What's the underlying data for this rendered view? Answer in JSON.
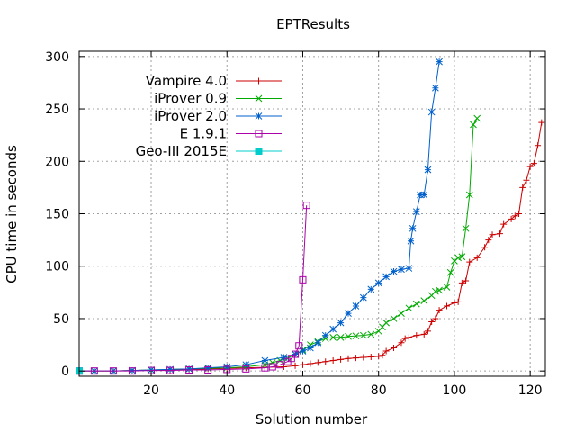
{
  "chart_data": {
    "type": "line",
    "title": "EPTResults",
    "xlabel": "Solution number",
    "ylabel": "CPU time in seconds",
    "xlim": [
      1,
      124
    ],
    "ylim": [
      -5,
      305
    ],
    "xticks": [
      20,
      40,
      60,
      80,
      100,
      120
    ],
    "yticks": [
      0,
      50,
      100,
      150,
      200,
      250,
      300
    ],
    "grid": true,
    "legend_position": "top-left",
    "series": [
      {
        "name": "Vampire 4.0",
        "color": "#cc0000",
        "marker": "plus",
        "points": [
          [
            1,
            0
          ],
          [
            5,
            0
          ],
          [
            10,
            0
          ],
          [
            15,
            0.5
          ],
          [
            20,
            0.8
          ],
          [
            25,
            1
          ],
          [
            30,
            1.5
          ],
          [
            35,
            2
          ],
          [
            40,
            2.5
          ],
          [
            45,
            3
          ],
          [
            50,
            3.5
          ],
          [
            55,
            4
          ],
          [
            58,
            5
          ],
          [
            60,
            6
          ],
          [
            62,
            7
          ],
          [
            64,
            8
          ],
          [
            66,
            9
          ],
          [
            68,
            10
          ],
          [
            70,
            11
          ],
          [
            72,
            12
          ],
          [
            74,
            12.5
          ],
          [
            76,
            13
          ],
          [
            78,
            13.5
          ],
          [
            80,
            14
          ],
          [
            81,
            15
          ],
          [
            82,
            19
          ],
          [
            84,
            22
          ],
          [
            86,
            27
          ],
          [
            87,
            31
          ],
          [
            88,
            32
          ],
          [
            90,
            34
          ],
          [
            92,
            35
          ],
          [
            93,
            38
          ],
          [
            94,
            47
          ],
          [
            95,
            50
          ],
          [
            96,
            58
          ],
          [
            98,
            62
          ],
          [
            100,
            65
          ],
          [
            101,
            66
          ],
          [
            102,
            84
          ],
          [
            103,
            86
          ],
          [
            104,
            104
          ],
          [
            106,
            108
          ],
          [
            108,
            118
          ],
          [
            109,
            125
          ],
          [
            110,
            130
          ],
          [
            112,
            131
          ],
          [
            113,
            140
          ],
          [
            115,
            145
          ],
          [
            116,
            148
          ],
          [
            117,
            150
          ],
          [
            118,
            175
          ],
          [
            119,
            182
          ],
          [
            120,
            195
          ],
          [
            121,
            198
          ],
          [
            122,
            215
          ],
          [
            123,
            237
          ]
        ]
      },
      {
        "name": "iProver 0.9",
        "color": "#00aa00",
        "marker": "cross",
        "points": [
          [
            1,
            0
          ],
          [
            5,
            0
          ],
          [
            10,
            0
          ],
          [
            15,
            0.5
          ],
          [
            20,
            1
          ],
          [
            25,
            1.5
          ],
          [
            30,
            2
          ],
          [
            35,
            2.5
          ],
          [
            40,
            3
          ],
          [
            45,
            4
          ],
          [
            50,
            6
          ],
          [
            52,
            8
          ],
          [
            54,
            10
          ],
          [
            56,
            12
          ],
          [
            58,
            16
          ],
          [
            60,
            20
          ],
          [
            62,
            25
          ],
          [
            64,
            28
          ],
          [
            66,
            31
          ],
          [
            68,
            32
          ],
          [
            70,
            32
          ],
          [
            72,
            33
          ],
          [
            74,
            33.5
          ],
          [
            76,
            34
          ],
          [
            78,
            35
          ],
          [
            80,
            38
          ],
          [
            81,
            42
          ],
          [
            82,
            46
          ],
          [
            84,
            50
          ],
          [
            86,
            55
          ],
          [
            88,
            60
          ],
          [
            90,
            64
          ],
          [
            92,
            67
          ],
          [
            94,
            72
          ],
          [
            95,
            76
          ],
          [
            96,
            77
          ],
          [
            98,
            80
          ],
          [
            99,
            94
          ],
          [
            100,
            105
          ],
          [
            101,
            108
          ],
          [
            102,
            109
          ],
          [
            103,
            136
          ],
          [
            104,
            168
          ],
          [
            105,
            235
          ],
          [
            106,
            241
          ]
        ]
      },
      {
        "name": "iProver 2.0",
        "color": "#0060cc",
        "marker": "star",
        "points": [
          [
            1,
            0
          ],
          [
            5,
            0
          ],
          [
            10,
            0
          ],
          [
            15,
            0.5
          ],
          [
            20,
            1
          ],
          [
            25,
            1.5
          ],
          [
            30,
            2
          ],
          [
            35,
            3
          ],
          [
            40,
            4
          ],
          [
            45,
            6
          ],
          [
            50,
            10
          ],
          [
            55,
            13
          ],
          [
            58,
            16
          ],
          [
            60,
            19
          ],
          [
            62,
            22
          ],
          [
            64,
            27
          ],
          [
            66,
            34
          ],
          [
            68,
            40
          ],
          [
            70,
            46
          ],
          [
            72,
            55
          ],
          [
            74,
            62
          ],
          [
            76,
            70
          ],
          [
            78,
            78
          ],
          [
            80,
            84
          ],
          [
            82,
            90
          ],
          [
            84,
            95
          ],
          [
            86,
            97
          ],
          [
            88,
            98
          ],
          [
            88.5,
            124
          ],
          [
            89,
            136
          ],
          [
            90,
            152
          ],
          [
            91,
            168
          ],
          [
            92,
            168
          ],
          [
            93,
            192
          ],
          [
            94,
            247
          ],
          [
            95,
            270
          ],
          [
            96,
            295
          ]
        ]
      },
      {
        "name": "E 1.9.1",
        "color": "#aa00aa",
        "marker": "square",
        "points": [
          [
            1,
            0
          ],
          [
            5,
            0
          ],
          [
            10,
            0
          ],
          [
            15,
            0
          ],
          [
            20,
            0.5
          ],
          [
            25,
            0.5
          ],
          [
            30,
            1
          ],
          [
            35,
            1
          ],
          [
            40,
            1.5
          ],
          [
            45,
            2
          ],
          [
            50,
            3
          ],
          [
            52,
            4
          ],
          [
            54,
            6
          ],
          [
            56,
            9
          ],
          [
            57,
            12
          ],
          [
            58,
            16
          ],
          [
            59,
            24
          ],
          [
            60,
            87
          ],
          [
            61,
            158
          ]
        ]
      },
      {
        "name": "Geo-III 2015E",
        "color": "#00cccc",
        "marker": "filled-square",
        "points": [
          [
            1,
            0
          ]
        ]
      }
    ]
  }
}
